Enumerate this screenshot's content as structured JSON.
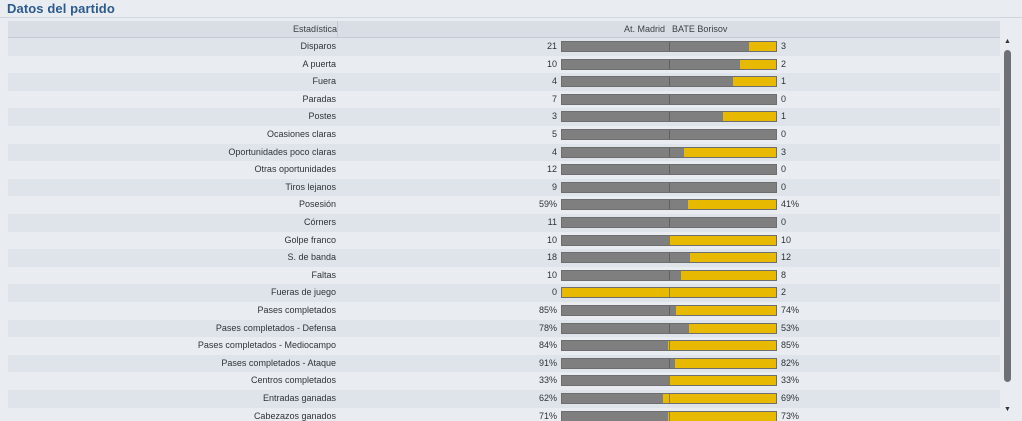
{
  "panel": {
    "title": "Datos del partido"
  },
  "header": {
    "stat_col": "Estadística",
    "home_team": "At. Madrid",
    "away_team": "BATE Borisov"
  },
  "colors": {
    "home_bar": "#7f7f7f",
    "away_bar": "#e7b900",
    "title": "#2c5a8c"
  },
  "stats": [
    {
      "label": "Disparos",
      "home": "21",
      "away": "3",
      "home_share": 0.875
    },
    {
      "label": "A puerta",
      "home": "10",
      "away": "2",
      "home_share": 0.833
    },
    {
      "label": "Fuera",
      "home": "4",
      "away": "1",
      "home_share": 0.8
    },
    {
      "label": "Paradas",
      "home": "7",
      "away": "0",
      "home_share": 1.0
    },
    {
      "label": "Postes",
      "home": "3",
      "away": "1",
      "home_share": 0.75
    },
    {
      "label": "Ocasiones claras",
      "home": "5",
      "away": "0",
      "home_share": 1.0
    },
    {
      "label": "Oportunidades poco claras",
      "home": "4",
      "away": "3",
      "home_share": 0.571
    },
    {
      "label": "Otras oportunidades",
      "home": "12",
      "away": "0",
      "home_share": 1.0
    },
    {
      "label": "Tiros lejanos",
      "home": "9",
      "away": "0",
      "home_share": 1.0
    },
    {
      "label": "Posesión",
      "home": "59%",
      "away": "41%",
      "home_share": 0.59
    },
    {
      "label": "Córners",
      "home": "11",
      "away": "0",
      "home_share": 1.0
    },
    {
      "label": "Golpe franco",
      "home": "10",
      "away": "10",
      "home_share": 0.5
    },
    {
      "label": "S. de banda",
      "home": "18",
      "away": "12",
      "home_share": 0.6
    },
    {
      "label": "Faltas",
      "home": "10",
      "away": "8",
      "home_share": 0.556
    },
    {
      "label": "Fueras de juego",
      "home": "0",
      "away": "2",
      "home_share": 0.0
    },
    {
      "label": "Pases completados",
      "home": "85%",
      "away": "74%",
      "home_share": 0.535
    },
    {
      "label": "Pases completados - Defensa",
      "home": "78%",
      "away": "53%",
      "home_share": 0.595
    },
    {
      "label": "Pases completados - Mediocampo",
      "home": "84%",
      "away": "85%",
      "home_share": 0.497
    },
    {
      "label": "Pases completados - Ataque",
      "home": "91%",
      "away": "82%",
      "home_share": 0.526
    },
    {
      "label": "Centros completados",
      "home": "33%",
      "away": "33%",
      "home_share": 0.5
    },
    {
      "label": "Entradas ganadas",
      "home": "62%",
      "away": "69%",
      "home_share": 0.473
    },
    {
      "label": "Cabezazos ganados",
      "home": "71%",
      "away": "73%",
      "home_share": 0.493
    }
  ],
  "scrollbar": {
    "up_icon": "arrow-up-icon",
    "down_icon": "arrow-down-icon"
  }
}
